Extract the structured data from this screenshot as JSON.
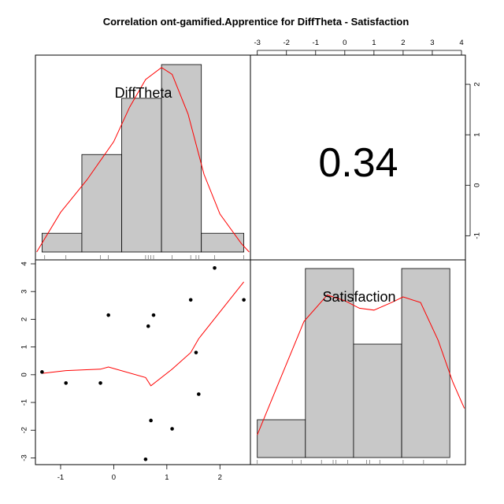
{
  "chart_data": {
    "type": "scatter",
    "title": "Correlation ont-gamified.Apprentice for DiffTheta - Satisfaction",
    "variables": [
      "DiffTheta",
      "Satisfaction"
    ],
    "correlation": "0.34",
    "colors": {
      "bar_fill": "#c8c8c8",
      "density": "#ff0000",
      "points": "#000000"
    },
    "diff_theta_axis": {
      "range": [
        -1.4,
        2.5
      ],
      "ticks": [
        -1,
        0,
        1,
        2
      ]
    },
    "satisfaction_axis": {
      "range": [
        -3.1,
        4.0
      ],
      "ticks_left": [
        -3,
        -2,
        -1,
        0,
        1,
        2,
        3,
        4
      ],
      "ticks_right": [
        -1,
        0,
        1,
        2
      ]
    },
    "top_axis": {
      "ticks": [
        -3,
        -2,
        -1,
        0,
        1,
        2,
        3,
        4
      ]
    },
    "diff_theta_hist": {
      "breaks": [
        -1.35,
        -0.6,
        0.15,
        0.9,
        1.65,
        2.45
      ],
      "heights": [
        0.1,
        0.52,
        0.82,
        1.0,
        0.1
      ]
    },
    "diff_theta_density": [
      [
        -1.45,
        0.0
      ],
      [
        -1.0,
        0.23
      ],
      [
        -0.5,
        0.42
      ],
      [
        0.0,
        0.64
      ],
      [
        0.3,
        0.84
      ],
      [
        0.6,
        1.0
      ],
      [
        0.9,
        1.07
      ],
      [
        1.1,
        1.03
      ],
      [
        1.4,
        0.8
      ],
      [
        1.7,
        0.45
      ],
      [
        2.0,
        0.22
      ],
      [
        2.4,
        0.05
      ],
      [
        2.55,
        0.0
      ]
    ],
    "diff_theta_rug": [
      -1.3,
      -0.9,
      -0.25,
      -0.1,
      0.6,
      0.65,
      0.7,
      0.75,
      1.1,
      1.45,
      1.55,
      1.6,
      1.9,
      2.45
    ],
    "satisfaction_hist": {
      "breaks": [
        -3.0,
        -1.35,
        0.3,
        1.95,
        3.6
      ],
      "heights": [
        0.2,
        1.0,
        0.6,
        1.0
      ]
    },
    "satisfaction_density": [
      [
        -3.0,
        0.12
      ],
      [
        -2.2,
        0.42
      ],
      [
        -1.4,
        0.72
      ],
      [
        -0.6,
        0.86
      ],
      [
        0.0,
        0.83
      ],
      [
        0.5,
        0.79
      ],
      [
        1.0,
        0.78
      ],
      [
        1.6,
        0.82
      ],
      [
        2.0,
        0.85
      ],
      [
        2.6,
        0.82
      ],
      [
        3.2,
        0.62
      ],
      [
        3.7,
        0.4
      ],
      [
        4.1,
        0.26
      ]
    ],
    "satisfaction_rug": [
      -3.0,
      -1.8,
      -1.5,
      -0.8,
      -0.4,
      -0.3,
      0.1,
      0.75,
      0.85,
      1.2,
      2.0,
      2.7,
      3.5
    ],
    "points": [
      {
        "x": -1.35,
        "y": 0.1
      },
      {
        "x": -0.9,
        "y": -0.3
      },
      {
        "x": -0.25,
        "y": -0.3
      },
      {
        "x": -0.1,
        "y": 2.15
      },
      {
        "x": 0.6,
        "y": -3.05
      },
      {
        "x": 0.65,
        "y": 1.75
      },
      {
        "x": 0.7,
        "y": -1.65
      },
      {
        "x": 0.75,
        "y": 2.15
      },
      {
        "x": 1.1,
        "y": -1.95
      },
      {
        "x": 1.45,
        "y": 2.7
      },
      {
        "x": 1.55,
        "y": 0.8
      },
      {
        "x": 1.6,
        "y": -0.7
      },
      {
        "x": 1.9,
        "y": 3.85
      },
      {
        "x": 2.45,
        "y": 2.7
      }
    ],
    "smooth_line": [
      [
        -1.35,
        0.05
      ],
      [
        -0.9,
        0.15
      ],
      [
        -0.25,
        0.2
      ],
      [
        -0.1,
        0.28
      ],
      [
        0.6,
        -0.1
      ],
      [
        0.7,
        -0.4
      ],
      [
        1.1,
        0.2
      ],
      [
        1.45,
        0.8
      ],
      [
        1.6,
        1.3
      ],
      [
        2.45,
        3.35
      ]
    ]
  }
}
